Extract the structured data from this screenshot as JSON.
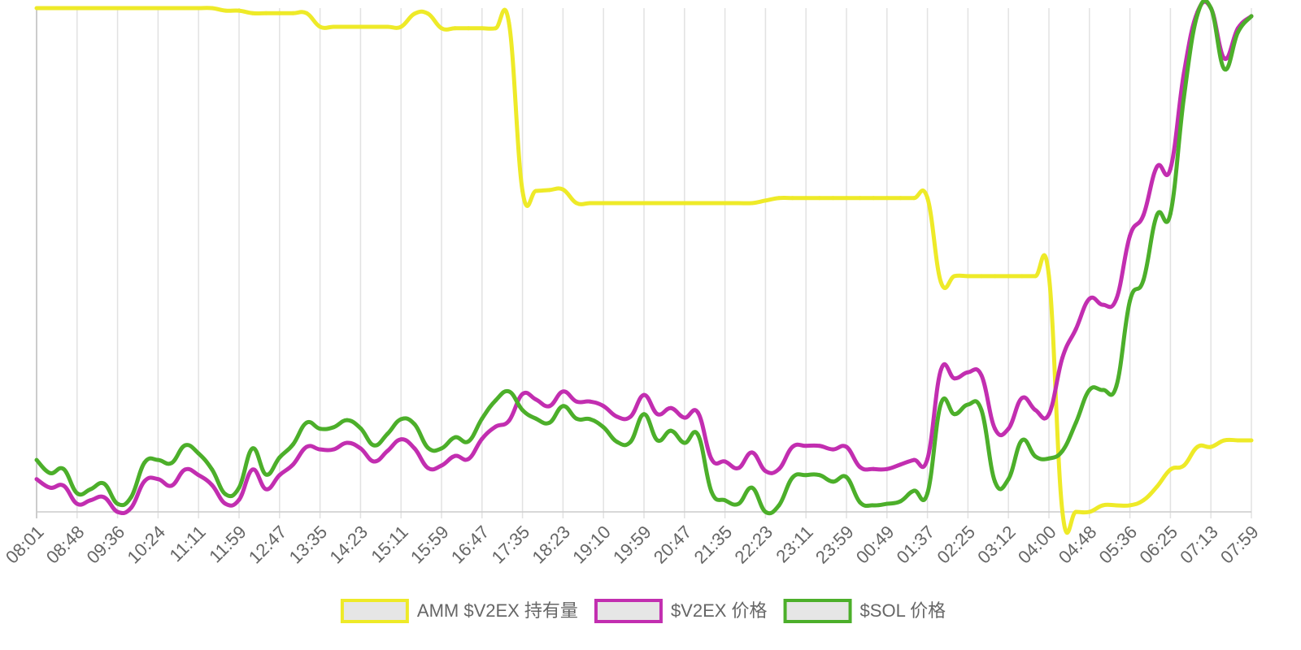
{
  "chart_data": {
    "type": "line",
    "categories": [
      "08:01",
      null,
      null,
      "08:48",
      null,
      null,
      "09:36",
      null,
      null,
      "10:24",
      null,
      null,
      "11:11",
      null,
      null,
      "11:59",
      null,
      null,
      "12:47",
      null,
      null,
      "13:35",
      null,
      null,
      "14:23",
      null,
      null,
      "15:11",
      null,
      null,
      "15:59",
      null,
      null,
      "16:47",
      null,
      null,
      "17:35",
      null,
      null,
      "18:23",
      null,
      null,
      "19:10",
      null,
      null,
      "19:59",
      null,
      null,
      "20:47",
      null,
      null,
      "21:35",
      null,
      null,
      "22:23",
      null,
      null,
      "23:11",
      null,
      null,
      "23:59",
      null,
      null,
      "00:49",
      null,
      null,
      "01:37",
      null,
      null,
      "02:25",
      null,
      null,
      "03:12",
      null,
      null,
      "04:00",
      null,
      null,
      "04:48",
      null,
      null,
      "05:36",
      null,
      null,
      "06:25",
      null,
      null,
      "07:13",
      null,
      null,
      "07:59"
    ],
    "ylim": [
      0,
      100
    ],
    "grid": true,
    "legend": "bottom",
    "series": [
      {
        "name": "AMM $V2EX 持有量",
        "color": "#eeea28",
        "values": [
          100,
          100,
          100,
          100,
          100,
          100,
          100,
          100,
          100,
          100,
          100,
          100,
          100,
          100,
          99.5,
          99.5,
          99,
          99,
          99,
          99,
          99,
          96.3,
          96.3,
          96.3,
          96.3,
          96.3,
          96.3,
          96.3,
          98.9,
          98.9,
          96,
          96,
          96,
          96,
          96,
          97,
          63.7,
          63.7,
          63.9,
          64,
          61.3,
          61.3,
          61.3,
          61.3,
          61.3,
          61.3,
          61.3,
          61.3,
          61.3,
          61.3,
          61.3,
          61.3,
          61.3,
          61.3,
          61.8,
          62.3,
          62.3,
          62.3,
          62.3,
          62.3,
          62.3,
          62.3,
          62.3,
          62.3,
          62.3,
          62.3,
          62.3,
          45.6,
          46.8,
          46.8,
          46.8,
          46.8,
          46.8,
          46.8,
          46.8,
          46.8,
          0,
          0,
          0,
          1.3,
          1.3,
          1.3,
          2.3,
          5,
          8.4,
          9.2,
          12.9,
          12.9,
          14.2,
          14.2,
          14.2
        ]
      },
      {
        "name": "$V2EX 价格",
        "color": "#c22eb0",
        "values": [
          6.5,
          4.8,
          5.2,
          1.6,
          2.3,
          2.9,
          0,
          0.8,
          6.1,
          6.5,
          5.2,
          8.4,
          7.3,
          5.3,
          1.6,
          2.4,
          8.4,
          4.5,
          7.3,
          9.4,
          12.9,
          12.4,
          12.4,
          13.7,
          12.6,
          10,
          12.1,
          14.4,
          12.6,
          8.7,
          9.2,
          11.1,
          10.5,
          14.5,
          16.9,
          18.1,
          23.4,
          22.3,
          21,
          23.9,
          21.9,
          21.9,
          21,
          18.9,
          18.9,
          23.2,
          19.4,
          20.6,
          18.7,
          19.7,
          10.5,
          10,
          8.7,
          11.8,
          8.1,
          8.5,
          12.9,
          13.1,
          13.1,
          12.4,
          12.9,
          8.9,
          8.5,
          8.5,
          9.4,
          10.3,
          10.5,
          28.2,
          26.5,
          27.7,
          27.1,
          16.5,
          16.5,
          22.6,
          20.2,
          19.4,
          30.6,
          36.3,
          42.3,
          41.1,
          42.3,
          54.8,
          58.9,
          68.5,
          68.1,
          87.1,
          99.2,
          100,
          90,
          96,
          98.4
        ]
      },
      {
        "name": "$SOL 价格",
        "color": "#4caf2a",
        "values": [
          10.3,
          7.7,
          8.5,
          3.7,
          4.5,
          5.6,
          1.6,
          2.9,
          9.8,
          10.3,
          9.7,
          13.2,
          11.6,
          8.4,
          3.5,
          4.8,
          12.6,
          7.4,
          10.8,
          13.4,
          17.7,
          16.5,
          16.8,
          18.2,
          16.6,
          13.2,
          15.5,
          18.4,
          17.4,
          12.7,
          12.6,
          14.8,
          14,
          18.5,
          22.1,
          23.9,
          20.2,
          18.5,
          17.7,
          21,
          18.5,
          18.4,
          16.8,
          13.9,
          13.9,
          19.4,
          14.2,
          16.1,
          13.7,
          15.3,
          4,
          2.3,
          1.6,
          4.8,
          0,
          1.3,
          6.8,
          7.3,
          7.3,
          6,
          6.9,
          1.9,
          1.3,
          1.6,
          2.1,
          4.2,
          3.7,
          21.5,
          19.4,
          21.3,
          20.2,
          6,
          6.5,
          14.2,
          11,
          10.6,
          12.1,
          17.7,
          24.2,
          24.2,
          25,
          41.9,
          46,
          58.9,
          59.2,
          82.3,
          98.7,
          100,
          87.9,
          95.2,
          98.4
        ]
      }
    ]
  }
}
